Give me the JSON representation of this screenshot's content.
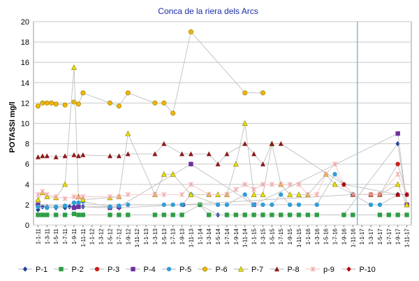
{
  "chart_data": {
    "type": "line",
    "title": "Conca de la riera dels Arcs",
    "xlabel": "",
    "ylabel": "POTASSI    mg/l",
    "ylim": [
      0,
      20
    ],
    "yticks": [
      0,
      2,
      4,
      6,
      8,
      10,
      12,
      14,
      16,
      18,
      20
    ],
    "grid": true,
    "legend_position": "bottom",
    "categories": [
      "1-1-11",
      "1-3-11",
      "1-5-11",
      "1-7-11",
      "1-9-11",
      "1-11-11",
      "1-1-12",
      "1-3-12",
      "1-5-12",
      "1-7-12",
      "1-9-12",
      "1-11-12",
      "1-1-13",
      "1-3-13",
      "1-5-13",
      "1-7-13",
      "1-9-13",
      "1-11-13",
      "1-1-14",
      "1-3-14",
      "1-5-14",
      "1-7-14",
      "1-9-14",
      "1-11-14",
      "1-1-15",
      "1-3-15",
      "1-5-15",
      "1-7-15",
      "1-9-15",
      "1-11-15",
      "1-1-16",
      "1-3-16",
      "1-5-16",
      "1-7-16",
      "1-9-16",
      "1-11-16",
      "1-1-17",
      "1-3-17",
      "1-5-17",
      "1-7-17",
      "1-9-17",
      "1-11-17"
    ],
    "vertical_reference_line_index": 36,
    "series": [
      {
        "name": "P-1",
        "color": "#1f3d99",
        "marker": "diamond",
        "line": "#bfbfbf",
        "points": [
          [
            0,
            1.5
          ],
          [
            0.5,
            1.8
          ],
          [
            1,
            1.8
          ],
          [
            2,
            1.7
          ],
          [
            3,
            1.7
          ],
          [
            3.5,
            1.8
          ],
          [
            4,
            1.8
          ],
          [
            4.5,
            1.8
          ],
          [
            5,
            1.8
          ],
          [
            8,
            1.8
          ],
          [
            9,
            1.7
          ],
          [
            16.2,
            2.0
          ],
          [
            18,
            2.0
          ],
          [
            20,
            1.0
          ],
          [
            21,
            1.0
          ],
          [
            23,
            1.0
          ],
          [
            25,
            1.0
          ],
          [
            34,
            1.0
          ],
          [
            40,
            8.0
          ],
          [
            41,
            2.0
          ]
        ]
      },
      {
        "name": "P-2",
        "color": "#2e9e46",
        "marker": "square",
        "line": "#bfbfbf",
        "points": [
          [
            0,
            1.0
          ],
          [
            0.5,
            1.0
          ],
          [
            1,
            1.0
          ],
          [
            2,
            1.0
          ],
          [
            3,
            1.0
          ],
          [
            4,
            1.1
          ],
          [
            4.5,
            1.0
          ],
          [
            5,
            1.0
          ],
          [
            8,
            1.0
          ],
          [
            9,
            1.0
          ],
          [
            10,
            1.0
          ],
          [
            13,
            1.0
          ],
          [
            14,
            1.0
          ],
          [
            15,
            1.0
          ],
          [
            16,
            1.0
          ],
          [
            18,
            2.0
          ],
          [
            19,
            1.0
          ],
          [
            21,
            1.0
          ],
          [
            22,
            1.0
          ],
          [
            23,
            1.0
          ],
          [
            24,
            1.0
          ],
          [
            25,
            1.0
          ],
          [
            26,
            1.0
          ],
          [
            27,
            1.0
          ],
          [
            28,
            1.0
          ],
          [
            29,
            1.0
          ],
          [
            30,
            1.0
          ],
          [
            31,
            1.0
          ],
          [
            34,
            1.0
          ],
          [
            35,
            1.0
          ],
          [
            38,
            1.0
          ],
          [
            39,
            1.0
          ],
          [
            40,
            1.0
          ],
          [
            41,
            1.0
          ]
        ]
      },
      {
        "name": "P-3",
        "color": "#cc1f1f",
        "marker": "circle",
        "line": "#bfbfbf",
        "points": [
          [
            16,
            2.0
          ],
          [
            35,
            3.0
          ],
          [
            37,
            3.0
          ],
          [
            38,
            3.0
          ],
          [
            40,
            6.0
          ],
          [
            41,
            3.0
          ]
        ]
      },
      {
        "name": "P-4",
        "color": "#7030a0",
        "marker": "square",
        "line": "#bfbfbf",
        "points": [
          [
            0,
            2.0
          ],
          [
            4,
            1.7
          ],
          [
            4.5,
            1.8
          ],
          [
            8,
            1.7
          ],
          [
            9,
            1.8
          ],
          [
            17,
            6.0
          ],
          [
            24,
            2.0
          ],
          [
            40,
            9.0
          ],
          [
            41,
            2.0
          ]
        ]
      },
      {
        "name": "P-5",
        "color": "#2f9ed8",
        "marker": "circle",
        "line": "#bfbfbf",
        "points": [
          [
            0,
            1.8
          ],
          [
            1,
            1.7
          ],
          [
            2,
            1.8
          ],
          [
            3,
            1.9
          ],
          [
            4,
            2.2
          ],
          [
            4.5,
            2.2
          ],
          [
            5,
            2.3
          ],
          [
            8,
            1.8
          ],
          [
            9,
            1.9
          ],
          [
            10,
            2.0
          ],
          [
            14,
            2.0
          ],
          [
            15,
            2.0
          ],
          [
            16,
            2.0
          ],
          [
            17,
            3.0
          ],
          [
            20,
            2.0
          ],
          [
            21,
            2.0
          ],
          [
            23,
            3.0
          ],
          [
            24,
            2.0
          ],
          [
            25,
            2.0
          ],
          [
            26,
            2.0
          ],
          [
            27,
            3.0
          ],
          [
            28,
            2.0
          ],
          [
            29,
            2.0
          ],
          [
            31,
            2.0
          ],
          [
            33,
            5.0
          ],
          [
            34,
            4.0
          ],
          [
            35,
            3.0
          ],
          [
            37,
            2.0
          ],
          [
            38,
            2.0
          ],
          [
            40,
            3.0
          ],
          [
            41,
            3.0
          ]
        ]
      },
      {
        "name": "P-6",
        "color": "#f5b400",
        "marker": "circle",
        "line": "#bfbfbf",
        "points": [
          [
            0,
            11.7
          ],
          [
            0.5,
            12.0
          ],
          [
            1,
            12.0
          ],
          [
            1.5,
            12.0
          ],
          [
            2,
            11.9
          ],
          [
            3,
            11.8
          ],
          [
            4,
            12.1
          ],
          [
            4.5,
            11.9
          ],
          [
            5,
            13.0
          ],
          [
            8,
            12.0
          ],
          [
            9,
            11.7
          ],
          [
            10,
            13.0
          ],
          [
            13,
            12.0
          ],
          [
            14,
            12.0
          ],
          [
            15,
            11.0
          ],
          [
            17,
            19.0
          ],
          [
            23,
            13.0
          ],
          [
            25,
            13.0
          ]
        ]
      },
      {
        "name": "P-7",
        "color": "#e9e000",
        "marker": "triangle",
        "line": "#bfbfbf",
        "points": [
          [
            0,
            2.5
          ],
          [
            0.5,
            3.2
          ],
          [
            1,
            2.8
          ],
          [
            2,
            2.7
          ],
          [
            3,
            4.0
          ],
          [
            4,
            15.5
          ],
          [
            4.5,
            2.8
          ],
          [
            5,
            2.5
          ],
          [
            8,
            2.7
          ],
          [
            9,
            2.8
          ],
          [
            10,
            9.0
          ],
          [
            13,
            3.0
          ],
          [
            14,
            5.0
          ],
          [
            15,
            5.0
          ],
          [
            17,
            3.0
          ],
          [
            19,
            3.0
          ],
          [
            20,
            3.0
          ],
          [
            21,
            3.0
          ],
          [
            22,
            6.0
          ],
          [
            23,
            10.0
          ],
          [
            24,
            3.0
          ],
          [
            25,
            3.0
          ],
          [
            26,
            8.0
          ],
          [
            27,
            4.0
          ],
          [
            28,
            3.0
          ],
          [
            29,
            3.0
          ],
          [
            30,
            3.0
          ],
          [
            32,
            5.0
          ],
          [
            33,
            4.0
          ],
          [
            35,
            3.0
          ],
          [
            37,
            3.0
          ],
          [
            38,
            3.0
          ],
          [
            40,
            4.0
          ],
          [
            41,
            2.0
          ]
        ]
      },
      {
        "name": "P-8",
        "color": "#8b1a1a",
        "marker": "triangle",
        "line": "#bfbfbf",
        "points": [
          [
            0,
            6.7
          ],
          [
            0.5,
            6.8
          ],
          [
            1,
            6.8
          ],
          [
            2,
            6.7
          ],
          [
            3,
            6.8
          ],
          [
            4,
            6.9
          ],
          [
            4.5,
            6.8
          ],
          [
            5,
            6.9
          ],
          [
            8,
            6.8
          ],
          [
            9,
            6.8
          ],
          [
            10,
            7.0
          ],
          [
            13,
            7.0
          ],
          [
            14,
            8.0
          ],
          [
            16,
            7.0
          ],
          [
            17,
            7.0
          ],
          [
            19,
            7.0
          ],
          [
            20,
            6.0
          ],
          [
            21,
            7.0
          ],
          [
            23,
            8.0
          ],
          [
            24,
            7.0
          ],
          [
            25,
            6.0
          ],
          [
            26,
            8.0
          ],
          [
            27,
            8.0
          ],
          [
            34,
            4.0
          ],
          [
            35,
            3.0
          ],
          [
            37,
            3.0
          ],
          [
            38,
            3.0
          ],
          [
            40,
            3.0
          ],
          [
            41,
            3.0
          ]
        ]
      },
      {
        "name": "p-9",
        "color": "#f0a0a0",
        "marker": "star",
        "line": "#f3c6c6",
        "points": [
          [
            0,
            3.0
          ],
          [
            0.5,
            3.3
          ],
          [
            1,
            3.0
          ],
          [
            2,
            2.8
          ],
          [
            3,
            2.6
          ],
          [
            4,
            2.8
          ],
          [
            4.5,
            2.7
          ],
          [
            5,
            2.8
          ],
          [
            8,
            2.8
          ],
          [
            9,
            2.8
          ],
          [
            10,
            3.0
          ],
          [
            13,
            3.0
          ],
          [
            14,
            3.0
          ],
          [
            16,
            3.0
          ],
          [
            17,
            4.0
          ],
          [
            19,
            3.0
          ],
          [
            21,
            3.0
          ],
          [
            22,
            3.5
          ],
          [
            23,
            4.0
          ],
          [
            24,
            3.5
          ],
          [
            25,
            4.0
          ],
          [
            26,
            4.0
          ],
          [
            27,
            4.0
          ],
          [
            28,
            4.0
          ],
          [
            29,
            4.0
          ],
          [
            30,
            3.0
          ],
          [
            31,
            3.0
          ],
          [
            32,
            5.0
          ],
          [
            33,
            6.0
          ],
          [
            34,
            4.0
          ],
          [
            35,
            3.0
          ],
          [
            37,
            3.0
          ],
          [
            38,
            3.0
          ],
          [
            40,
            5.0
          ],
          [
            41,
            3.0
          ]
        ]
      },
      {
        "name": "P-10",
        "color": "#b30000",
        "marker": "diamond",
        "line": "#bfbfbf",
        "points": [
          [
            34,
            4.0
          ],
          [
            40,
            3.0
          ],
          [
            41,
            3.0
          ]
        ]
      }
    ]
  }
}
